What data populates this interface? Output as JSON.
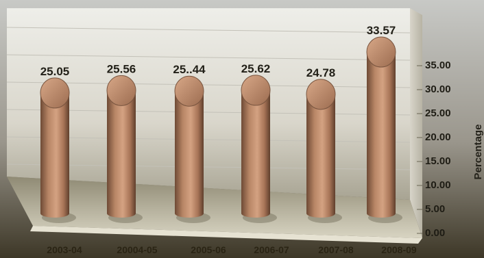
{
  "chart_data": {
    "type": "bar",
    "style": "3d-cylinder",
    "title": "",
    "xlabel": "",
    "ylabel": "Percentage",
    "categories": [
      "2003-04",
      "20004-05",
      "2005-06",
      "2006-07",
      "2007-08",
      "2008-09"
    ],
    "values": [
      25.05,
      25.56,
      25.44,
      25.62,
      24.78,
      33.57
    ],
    "data_labels": [
      "25.05",
      "25.56",
      "25..44",
      "25.62",
      "24.78",
      "33.57"
    ],
    "ylim": [
      0,
      35
    ],
    "yticks": [
      "0.00",
      "5.00",
      "10.00",
      "15.00",
      "20.00",
      "25.00",
      "30.00",
      "35.00"
    ],
    "y_axis_side": "right",
    "grid": true,
    "legend": "none",
    "colors": {
      "bar": "#b88666",
      "bar_dark": "#6e4a35",
      "bar_top": "#c79575",
      "wall": "#e4e2da",
      "floor": "#cfcbb8",
      "background": "#3a3526"
    }
  }
}
